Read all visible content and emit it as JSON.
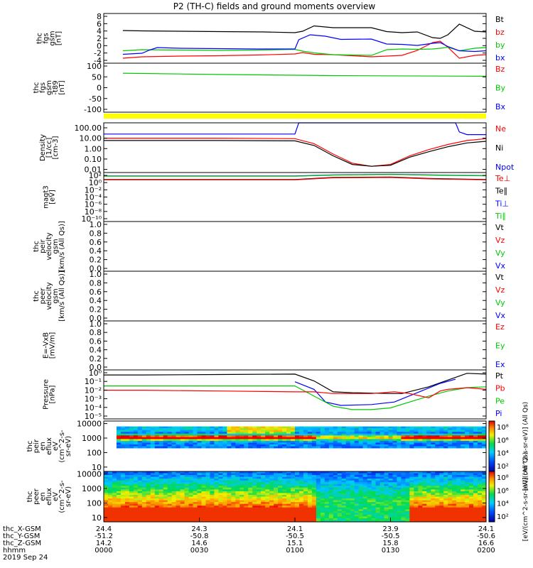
{
  "chart_data": {
    "type": "line",
    "title": "P2 (TH-C) fields and ground moments overview",
    "panels": [
      {
        "id": "fgs",
        "ylabel": [
          "thc",
          "fgs",
          "gsm",
          "[nT]"
        ],
        "yticks": [
          "8",
          "6",
          "4",
          "2",
          "0",
          "-2",
          "-4"
        ],
        "ylim": [
          -5,
          9
        ],
        "legend": [
          {
            "label": "Bt",
            "color": "#000000"
          },
          {
            "label": "bz",
            "color": "#ff0000"
          },
          {
            "label": "by",
            "color": "#00c800"
          },
          {
            "label": "bx",
            "color": "#0000ff"
          }
        ],
        "series": [
          {
            "name": "Bt",
            "color": "#000000",
            "x": [
              0.05,
              0.1,
              0.2,
              0.3,
              0.42,
              0.5,
              0.52,
              0.55,
              0.6,
              0.7,
              0.74,
              0.78,
              0.82,
              0.86,
              0.88,
              0.9,
              0.93,
              0.97,
              1.0
            ],
            "y": [
              4.2,
              4.1,
              4.0,
              3.9,
              3.8,
              3.6,
              4.0,
              5.5,
              5.0,
              5.0,
              3.9,
              3.6,
              3.8,
              2.2,
              2.0,
              3.0,
              6.0,
              4.0,
              3.8
            ]
          },
          {
            "name": "bz",
            "color": "#ff0000",
            "x": [
              0.05,
              0.1,
              0.2,
              0.3,
              0.4,
              0.5,
              0.52,
              0.55,
              0.6,
              0.7,
              0.74,
              0.78,
              0.82,
              0.86,
              0.88,
              0.9,
              0.93,
              0.97,
              1.0
            ],
            "y": [
              -3.6,
              -3.2,
              -3.0,
              -2.9,
              -2.7,
              -2.4,
              -2.0,
              -2.5,
              -2.6,
              -3.2,
              -3.0,
              -2.8,
              -1.4,
              0.8,
              1.2,
              -0.5,
              -3.6,
              -2.8,
              -2.6
            ]
          },
          {
            "name": "by",
            "color": "#00c800",
            "x": [
              0.05,
              0.1,
              0.2,
              0.3,
              0.4,
              0.5,
              0.52,
              0.55,
              0.6,
              0.7,
              0.74,
              0.78,
              0.82,
              0.86,
              0.88,
              0.9,
              0.93,
              0.97,
              1.0
            ],
            "y": [
              -1.5,
              -1.2,
              -1.3,
              -1.4,
              -1.3,
              -1.1,
              -1.6,
              -2.1,
              -2.6,
              -2.8,
              -1.2,
              -1.0,
              -1.1,
              -1.0,
              -0.8,
              -0.5,
              -1.5,
              -0.8,
              -0.6
            ]
          },
          {
            "name": "bx",
            "color": "#0000ff",
            "x": [
              0.05,
              0.1,
              0.12,
              0.14,
              0.2,
              0.3,
              0.4,
              0.5,
              0.51,
              0.54,
              0.58,
              0.62,
              0.7,
              0.74,
              0.78,
              0.82,
              0.86,
              0.88,
              0.9,
              0.93,
              0.97,
              1.0
            ],
            "y": [
              -2.5,
              -2.2,
              -1.3,
              -0.6,
              -0.8,
              -0.9,
              -1.0,
              -1.0,
              1.6,
              3.0,
              2.6,
              1.7,
              1.8,
              0.4,
              0.3,
              0.0,
              0.6,
              0.8,
              -0.3,
              -1.5,
              -1.7,
              -1.5
            ]
          }
        ]
      },
      {
        "id": "fgs_t89",
        "ylabel": [
          "thc",
          "fgs",
          "gsm",
          "-t89",
          "[nT]"
        ],
        "yticks": [
          "100",
          "50",
          "0",
          "-50",
          "-100"
        ],
        "ylim": [
          -125,
          100
        ],
        "legend": [
          {
            "label": "Bz",
            "color": "#ff0000"
          },
          {
            "label": "By",
            "color": "#00c800"
          },
          {
            "label": "Bx",
            "color": "#0000ff"
          }
        ],
        "series": [
          {
            "name": "By",
            "color": "#00c800",
            "x": [
              0.05,
              0.3,
              0.6,
              1.0
            ],
            "y": [
              54,
              48,
              43,
              40
            ]
          }
        ]
      },
      {
        "id": "density",
        "ylabel": [
          "Density",
          "[1/cc]",
          "[cm-3]"
        ],
        "yticks": [
          "100.00",
          "10.00",
          "1.00",
          "0.10",
          "0.01"
        ],
        "ylim": [
          0.005,
          300
        ],
        "log": true,
        "legend": [
          {
            "label": "Ne",
            "color": "#ff0000"
          },
          {
            "label": "Ni",
            "color": "#000000"
          },
          {
            "label": "Npot",
            "color": "#0000ff"
          }
        ],
        "series": [
          {
            "name": "Npot",
            "color": "#0000ff",
            "x": [
              0.0,
              0.5,
              0.51,
              0.52,
              0.92,
              0.93,
              0.95,
              1.0
            ],
            "y": [
              25,
              25,
              400,
              400,
              400,
              40,
              22,
              22
            ]
          },
          {
            "name": "Ne",
            "color": "#ff0000",
            "x": [
              0.0,
              0.1,
              0.3,
              0.5,
              0.55,
              0.6,
              0.65,
              0.7,
              0.75,
              0.8,
              0.85,
              0.9,
              0.95,
              1.0
            ],
            "y": [
              10,
              10,
              10,
              9,
              3,
              0.3,
              0.04,
              0.02,
              0.03,
              0.2,
              0.8,
              2.5,
              6,
              9
            ]
          },
          {
            "name": "Ni",
            "color": "#000000",
            "x": [
              0.0,
              0.1,
              0.3,
              0.5,
              0.55,
              0.6,
              0.65,
              0.7,
              0.75,
              0.8,
              0.85,
              0.9,
              0.95,
              1.0
            ],
            "y": [
              6,
              6,
              6,
              5.5,
              2,
              0.2,
              0.03,
              0.02,
              0.025,
              0.15,
              0.5,
              1.5,
              3.5,
              5
            ]
          }
        ]
      },
      {
        "id": "magt3",
        "ylabel": [
          "magt3",
          "[eV]"
        ],
        "yticks": [
          "10²",
          "10⁰",
          "10⁻²",
          "10⁻⁴",
          "10⁻⁶",
          "10⁻⁸",
          "10⁻¹⁰"
        ],
        "ylim": [
          -11,
          3
        ],
        "legend": [
          {
            "label": "Te⊥",
            "color": "#ff0000"
          },
          {
            "label": "Te∥",
            "color": "#000000"
          },
          {
            "label": "Ti⊥",
            "color": "#0000ff"
          },
          {
            "label": "Ti∥",
            "color": "#00c800"
          }
        ],
        "series": [
          {
            "name": "Ti⊥",
            "color": "#0000ff",
            "x": [
              0.0,
              0.5,
              0.6,
              0.75,
              0.85,
              1.0
            ],
            "y": [
              2.0,
              2.0,
              2.3,
              2.5,
              2.3,
              2.1
            ]
          },
          {
            "name": "Ti∥",
            "color": "#00c800",
            "x": [
              0.0,
              0.5,
              0.6,
              0.75,
              0.85,
              1.0
            ],
            "y": [
              1.95,
              1.95,
              2.25,
              2.45,
              2.25,
              2.05
            ]
          },
          {
            "name": "Te∥",
            "color": "#000000",
            "x": [
              0.0,
              0.5,
              0.6,
              0.75,
              0.85,
              1.0
            ],
            "y": [
              1.0,
              1.0,
              1.6,
              1.7,
              1.3,
              1.0
            ]
          },
          {
            "name": "Te⊥",
            "color": "#ff0000",
            "x": [
              0.0,
              0.5,
              0.6,
              0.75,
              0.85,
              1.0
            ],
            "y": [
              0.9,
              0.9,
              1.5,
              1.6,
              1.2,
              0.9
            ]
          }
        ]
      },
      {
        "id": "peir",
        "ylabel": [
          "thc",
          "peir",
          "velocity",
          "gsm",
          "[km/s (All Qs)]"
        ],
        "yticks": [
          "1.0",
          "0.8",
          "0.6",
          "0.4",
          "0.2",
          "0.0"
        ],
        "ylim": [
          0,
          1
        ],
        "legend": [
          {
            "label": "Vt",
            "color": "#000000"
          },
          {
            "label": "Vz",
            "color": "#ff0000"
          },
          {
            "label": "Vy",
            "color": "#00c800"
          },
          {
            "label": "Vx",
            "color": "#0000ff"
          }
        ],
        "series": []
      },
      {
        "id": "peer",
        "ylabel": [
          "thc",
          "peer",
          "velocity",
          "gsm",
          "[km/s (All Qs)]"
        ],
        "yticks": [
          "1.0",
          "0.8",
          "0.6",
          "0.4",
          "0.2",
          "0.0"
        ],
        "ylim": [
          0,
          1
        ],
        "legend": [
          {
            "label": "Vt",
            "color": "#000000"
          },
          {
            "label": "Vz",
            "color": "#ff0000"
          },
          {
            "label": "Vy",
            "color": "#00c800"
          },
          {
            "label": "Vx",
            "color": "#0000ff"
          }
        ],
        "series": []
      },
      {
        "id": "efield",
        "ylabel": [
          "E=-VxB",
          "[mV/m]"
        ],
        "yticks": [
          "1.0",
          "0.8",
          "0.6",
          "0.4",
          "0.2",
          "0.0"
        ],
        "ylim": [
          0,
          1
        ],
        "legend": [
          {
            "label": "Ez",
            "color": "#ff0000"
          },
          {
            "label": "Ey",
            "color": "#00c800"
          },
          {
            "label": "Ex",
            "color": "#0000ff"
          }
        ],
        "series": []
      },
      {
        "id": "pressure",
        "ylabel": [
          "Pressure",
          "[nPa]"
        ],
        "yticks": [
          "10⁰",
          "10⁻¹",
          "10⁻²",
          "10⁻³",
          "10⁻⁴",
          "10⁻⁵"
        ],
        "ylim": [
          -5.5,
          0.3
        ],
        "legend": [
          {
            "label": "Pt",
            "color": "#000000"
          },
          {
            "label": "Pb",
            "color": "#ff0000"
          },
          {
            "label": "Pe",
            "color": "#00c800"
          },
          {
            "label": "Pi",
            "color": "#0000ff"
          }
        ],
        "series": [
          {
            "name": "Pt",
            "color": "#000000",
            "x": [
              0.0,
              0.1,
              0.3,
              0.5,
              0.55,
              0.6,
              0.65,
              0.7,
              0.75,
              0.78,
              0.85,
              0.9,
              0.95,
              1.0
            ],
            "y": [
              -0.3,
              -0.3,
              -0.25,
              -0.2,
              -1.0,
              -2.3,
              -2.4,
              -2.45,
              -2.5,
              -2.5,
              -1.7,
              -0.9,
              -0.1,
              -0.2
            ]
          },
          {
            "name": "Pi",
            "color": "#0000ff",
            "x": [
              0.5,
              0.55,
              0.58,
              0.62,
              0.7,
              0.76,
              0.82,
              0.88,
              0.92
            ],
            "y": [
              -1.1,
              -2.0,
              -3.5,
              -3.9,
              -3.8,
              -3.5,
              -2.4,
              -1.3,
              -0.8
            ]
          },
          {
            "name": "Pe",
            "color": "#00c800",
            "x": [
              0.0,
              0.1,
              0.3,
              0.5,
              0.55,
              0.6,
              0.65,
              0.7,
              0.75,
              0.8,
              0.85,
              0.9,
              0.95,
              1.0
            ],
            "y": [
              -1.6,
              -1.6,
              -1.6,
              -1.6,
              -2.8,
              -4.0,
              -4.4,
              -4.4,
              -4.2,
              -3.5,
              -2.8,
              -2.2,
              -1.8,
              -1.7
            ]
          },
          {
            "name": "Pb",
            "color": "#ff0000",
            "x": [
              0.0,
              0.1,
              0.3,
              0.5,
              0.55,
              0.6,
              0.7,
              0.76,
              0.8,
              0.85,
              0.88,
              0.9,
              0.95,
              1.0
            ],
            "y": [
              -2.1,
              -2.1,
              -2.2,
              -2.3,
              -2.3,
              -2.5,
              -2.5,
              -2.3,
              -2.5,
              -3.0,
              -2.2,
              -2.0,
              -1.8,
              -2.0
            ]
          }
        ]
      },
      {
        "id": "peir_spec",
        "type": "heatmap",
        "ylabel": [
          "thc",
          "peir",
          "en",
          "eflux",
          "eV",
          "(cm^2-s-",
          "sr-eV)"
        ],
        "yticks": [
          "10000",
          "1000",
          "100",
          "10"
        ],
        "ylim": [
          5,
          15000
        ],
        "log": true
      },
      {
        "id": "peer_spec",
        "type": "heatmap",
        "ylabel": [
          "thc",
          "peer",
          "en",
          "eflux",
          "eV",
          "(cm^2-s-",
          "sr-eV)"
        ],
        "yticks": [
          "10000",
          "1000",
          "100",
          "10"
        ],
        "ylim": [
          5,
          15000
        ],
        "log": true
      }
    ],
    "colorbars": [
      {
        "ticks": [
          "10⁸",
          "10⁶",
          "10⁴",
          "10²"
        ],
        "label": "[eV/(cm^2-s-sr-eV)] (All Qs)"
      },
      {
        "ticks": [
          "10⁸",
          "10⁶",
          "10⁴",
          "10²"
        ],
        "label": "[eV/(cm^2-s-sr-eV)] (All Qs)"
      }
    ],
    "xaxis": {
      "row_labels": [
        "thc_X-GSM",
        "thc_Y-GSM",
        "thc_Z-GSM",
        "hhmm",
        "2019 Sep 24"
      ],
      "ticks": [
        {
          "values": [
            "24.4",
            "-51.2",
            "14.2",
            "0000"
          ]
        },
        {
          "values": [
            "24.3",
            "-50.8",
            "14.6",
            "0030"
          ]
        },
        {
          "values": [
            "24.1",
            "-50.5",
            "15.1",
            "0100"
          ]
        },
        {
          "values": [
            "23.9",
            "-50.5",
            "15.8",
            "0130"
          ]
        },
        {
          "values": [
            "24.1",
            "-50.6",
            "16.6",
            "0200"
          ]
        }
      ]
    }
  }
}
